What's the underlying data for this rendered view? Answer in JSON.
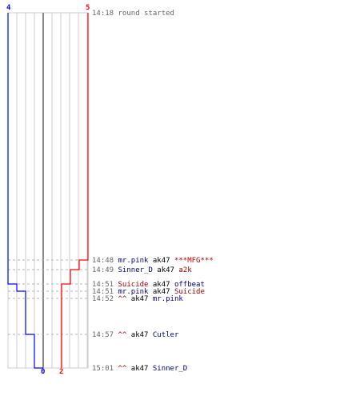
{
  "chart_data": {
    "type": "line",
    "title": "",
    "colors": {
      "blue": "#0000ff",
      "red": "#ff0000",
      "black": "#000000",
      "dark_blue": "#000080",
      "dark_red": "#aa0000",
      "time": "#666666"
    },
    "x_range": [
      0,
      5
    ],
    "series": [
      {
        "team": "blue",
        "start_value": 4,
        "end_value": 0
      },
      {
        "team": "red",
        "start_value": 5,
        "end_value": 2
      }
    ],
    "steps": [
      {
        "team": "red",
        "value": 4
      },
      {
        "team": "red",
        "value": 3
      },
      {
        "team": "blue",
        "value": 3
      },
      {
        "team": "blue",
        "value": 2
      },
      {
        "team": "red",
        "value": 2
      },
      {
        "team": "blue",
        "value": 1
      },
      {
        "team": "blue",
        "value": 0
      }
    ],
    "events": [
      {
        "time": "14:18",
        "parts": [
          {
            "text": "round started",
            "color": "time"
          }
        ]
      },
      {
        "time": "14:48",
        "parts": [
          {
            "text": "mr.pink",
            "color": "dark_blue"
          },
          {
            "text": "ak47",
            "color": "black"
          },
          {
            "text": "***MFG***",
            "color": "dark_red"
          }
        ]
      },
      {
        "time": "14:49",
        "parts": [
          {
            "text": "Sinner_D",
            "color": "dark_blue"
          },
          {
            "text": "ak47",
            "color": "black"
          },
          {
            "text": "a2k",
            "color": "dark_red"
          }
        ]
      },
      {
        "time": "14:51",
        "parts": [
          {
            "text": "Suicide",
            "color": "dark_red"
          },
          {
            "text": "ak47",
            "color": "black"
          },
          {
            "text": "offbeat",
            "color": "dark_blue"
          }
        ]
      },
      {
        "time": "14:51",
        "parts": [
          {
            "text": "mr.pink",
            "color": "dark_blue"
          },
          {
            "text": "ak47",
            "color": "black"
          },
          {
            "text": "Suicide",
            "color": "dark_red"
          }
        ]
      },
      {
        "time": "14:52",
        "parts": [
          {
            "text": "^^",
            "color": "dark_red"
          },
          {
            "text": "ak47",
            "color": "black"
          },
          {
            "text": "mr.pink",
            "color": "dark_blue"
          }
        ]
      },
      {
        "time": "14:57",
        "parts": [
          {
            "text": "^^",
            "color": "dark_red"
          },
          {
            "text": "ak47",
            "color": "black"
          },
          {
            "text": "Cutler",
            "color": "dark_blue"
          }
        ]
      },
      {
        "time": "15:01",
        "parts": [
          {
            "text": "^^",
            "color": "dark_red"
          },
          {
            "text": "ak47",
            "color": "black"
          },
          {
            "text": "Sinner_D",
            "color": "dark_blue"
          }
        ]
      }
    ]
  }
}
